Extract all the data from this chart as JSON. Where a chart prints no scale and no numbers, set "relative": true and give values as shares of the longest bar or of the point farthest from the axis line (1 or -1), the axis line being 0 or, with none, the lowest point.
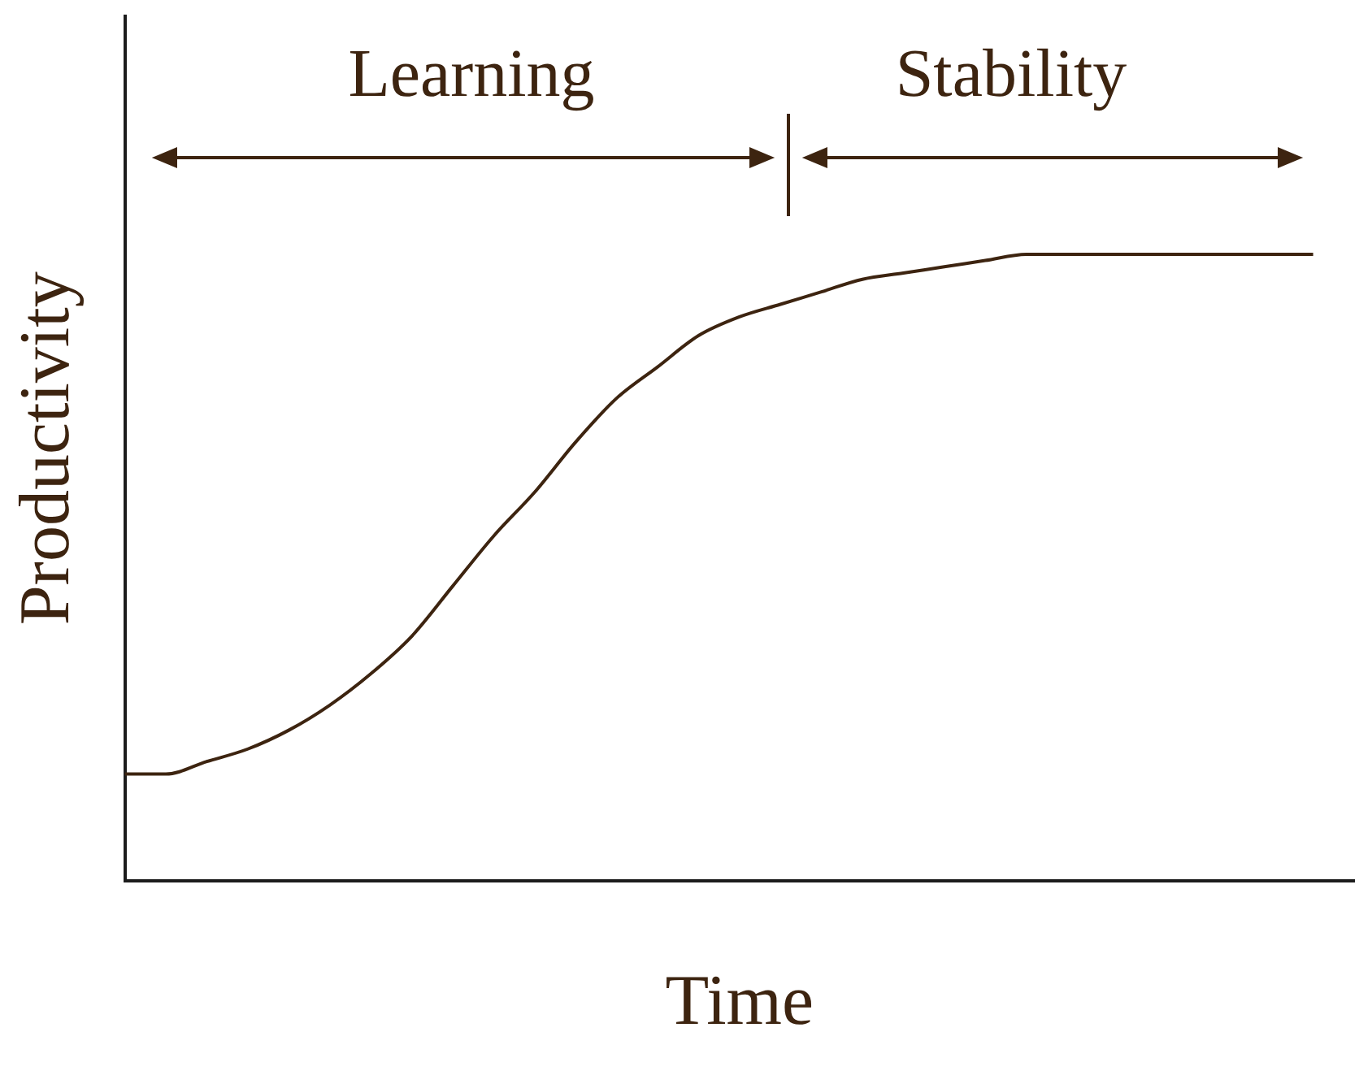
{
  "chart_data": {
    "type": "line",
    "relative": true,
    "xlabel": "Time",
    "ylabel": "Productivity",
    "categories": [
      null,
      null,
      null,
      null,
      null,
      null,
      null,
      null,
      null,
      null,
      null,
      null,
      null,
      null,
      null,
      null,
      null,
      null,
      null,
      null,
      null,
      null,
      null,
      null,
      null,
      null,
      null,
      null,
      null,
      null,
      null
    ],
    "series": [
      {
        "color": "#3d2410",
        "values": [
          0.17,
          0.17,
          0.19,
          0.21,
          0.24,
          0.28,
          0.33,
          0.39,
          0.47,
          0.55,
          0.62,
          0.7,
          0.77,
          0.82,
          0.87,
          0.9,
          0.92,
          0.94,
          0.96,
          0.97,
          0.98,
          0.99,
          1,
          1,
          1,
          1,
          1,
          1,
          1,
          1,
          null
        ]
      }
    ],
    "annotations": [
      "Learning",
      "Stability"
    ],
    "grid": false,
    "legend": false,
    "marker": "none",
    "line_style": "solid"
  }
}
